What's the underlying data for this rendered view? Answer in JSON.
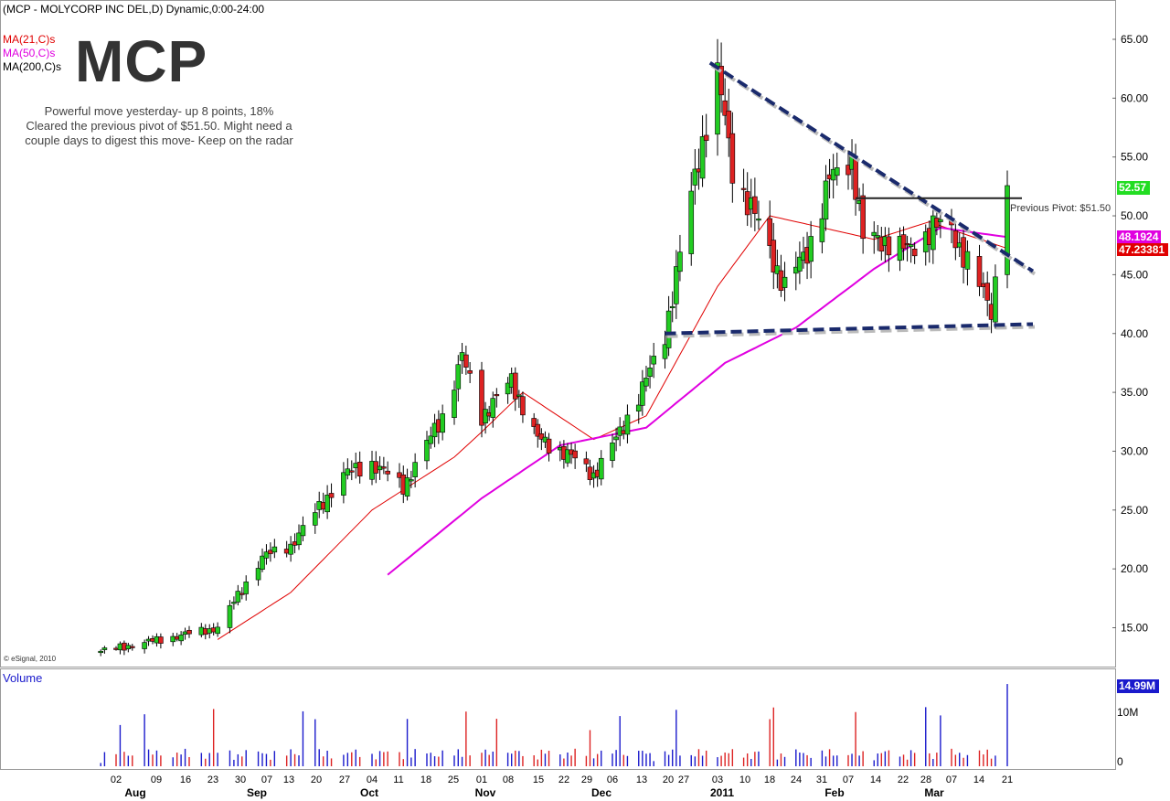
{
  "header": {
    "title": "(MCP - MOLYCORP INC DEL,D) Dynamic,0:00-24:00",
    "symbol": "MCP",
    "ma_labels": [
      {
        "text": "MA(21,C)s",
        "color": "#e00000"
      },
      {
        "text": "MA(50,C)s",
        "color": "#e000e0"
      },
      {
        "text": "MA(200,C)s",
        "color": "#000000"
      }
    ],
    "note": [
      "Powerful move yesterday- up 8 points, 18%",
      "Cleared the previous pivot of $51.50.  Might need a",
      "couple days to digest this move- Keep on the radar"
    ],
    "copyright": "© eSignal, 2010"
  },
  "price_axis": {
    "ticks": [
      "65.00",
      "60.00",
      "55.00",
      "50.00",
      "45.00",
      "40.00",
      "35.00",
      "30.00",
      "25.00",
      "20.00",
      "15.00"
    ],
    "last_price": "52.57",
    "ma50_value": "48.1924",
    "ma21_value": "47.23381",
    "last_color": "#00cc00",
    "ma50_color": "#e000e0",
    "ma21_color": "#e00000"
  },
  "annotations": {
    "pivot_label": "Previous Pivot: $51.50"
  },
  "volume_panel": {
    "title": "Volume",
    "last_volume": "14.99M",
    "ticks": [
      "10M",
      "0"
    ]
  },
  "x_axis": {
    "day_labels": [
      "02",
      "09",
      "16",
      "23",
      "30",
      "07",
      "13",
      "20",
      "27",
      "04",
      "11",
      "18",
      "25",
      "01",
      "08",
      "15",
      "22",
      "29",
      "06",
      "13",
      "20",
      "27",
      "03",
      "10",
      "18",
      "24",
      "31",
      "07",
      "14",
      "22",
      "28",
      "07",
      "14",
      "21"
    ],
    "month_labels": [
      "Aug",
      "Sep",
      "Oct",
      "Nov",
      "Dec",
      "2011",
      "Feb",
      "Mar"
    ]
  },
  "colors": {
    "up": "#22cc22",
    "down": "#dd2222",
    "trendline": "#1a2a6c",
    "volume_up": "#1a1acc",
    "volume_down": "#dd2222"
  },
  "chart_data": {
    "type": "candlestick",
    "title": "(MCP - MOLYCORP INC DEL,D) Dynamic,0:00-24:00",
    "y_range": [
      12,
      67
    ],
    "series": [
      {
        "name": "MA(21,C)s",
        "type": "line"
      },
      {
        "name": "MA(50,C)s",
        "type": "line"
      }
    ],
    "price_waypoints": [
      {
        "date": "Jul 29",
        "close": 13
      },
      {
        "date": "Aug 13",
        "close": 14
      },
      {
        "date": "Aug 27",
        "close": 15
      },
      {
        "date": "Sep 07",
        "close": 21
      },
      {
        "date": "Sep 14",
        "close": 22
      },
      {
        "date": "Sep 27",
        "close": 28
      },
      {
        "date": "Oct 04",
        "close": 29
      },
      {
        "date": "Oct 12",
        "close": 27
      },
      {
        "date": "Oct 22",
        "close": 33
      },
      {
        "date": "Oct 27",
        "close": 38
      },
      {
        "date": "Nov 01",
        "close": 33
      },
      {
        "date": "Nov 09",
        "close": 36
      },
      {
        "date": "Nov 16",
        "close": 31
      },
      {
        "date": "Nov 23",
        "close": 30
      },
      {
        "date": "Dec 01",
        "close": 28
      },
      {
        "date": "Dec 07",
        "close": 31
      },
      {
        "date": "Dec 15",
        "close": 36
      },
      {
        "date": "Dec 20",
        "close": 40
      },
      {
        "date": "Dec 23",
        "close": 45
      },
      {
        "date": "Dec 29",
        "close": 55
      },
      {
        "date": "Jan 03",
        "close": 62
      },
      {
        "date": "Jan 07",
        "close": 54
      },
      {
        "date": "Jan 13",
        "close": 50
      },
      {
        "date": "Jan 21",
        "close": 44
      },
      {
        "date": "Jan 27",
        "close": 47
      },
      {
        "date": "Feb 02",
        "close": 53
      },
      {
        "date": "Feb 08",
        "close": 55
      },
      {
        "date": "Feb 11",
        "close": 48
      },
      {
        "date": "Feb 17",
        "close": 48
      },
      {
        "date": "Feb 23",
        "close": 47
      },
      {
        "date": "Mar 02",
        "close": 49
      },
      {
        "date": "Mar 07",
        "close": 49
      },
      {
        "date": "Mar 11",
        "close": 46
      },
      {
        "date": "Mar 17",
        "close": 42
      },
      {
        "date": "Mar 21",
        "close": 52.57
      }
    ],
    "ma21_waypoints": [
      {
        "date": "Aug 27",
        "value": 14
      },
      {
        "date": "Sep 14",
        "value": 18
      },
      {
        "date": "Oct 04",
        "value": 25
      },
      {
        "date": "Oct 25",
        "value": 29.5
      },
      {
        "date": "Nov 12",
        "value": 35
      },
      {
        "date": "Dec 01",
        "value": 31
      },
      {
        "date": "Dec 15",
        "value": 33
      },
      {
        "date": "Jan 03",
        "value": 44
      },
      {
        "date": "Jan 17",
        "value": 50
      },
      {
        "date": "Jan 31",
        "value": 49
      },
      {
        "date": "Feb 14",
        "value": 48
      },
      {
        "date": "Mar 01",
        "value": 49.5
      },
      {
        "date": "Mar 21",
        "value": 47.23
      }
    ],
    "ma50_waypoints": [
      {
        "date": "Oct 08",
        "value": 19.5
      },
      {
        "date": "Nov 01",
        "value": 26
      },
      {
        "date": "Nov 22",
        "value": 30.5
      },
      {
        "date": "Dec 15",
        "value": 32
      },
      {
        "date": "Jan 05",
        "value": 37.5
      },
      {
        "date": "Jan 24",
        "value": 40.5
      },
      {
        "date": "Feb 14",
        "value": 45.5
      },
      {
        "date": "Mar 04",
        "value": 49
      },
      {
        "date": "Mar 21",
        "value": 48.19
      }
    ],
    "trendlines": [
      {
        "name": "resistance",
        "from": {
          "date": "Jan 01",
          "value": 63
        },
        "to": {
          "date": "Mar 28",
          "value": 45.3
        }
      },
      {
        "name": "support",
        "from": {
          "date": "Dec 20",
          "value": 40
        },
        "to": {
          "date": "Mar 28",
          "value": 40.8
        }
      },
      {
        "name": "pivot",
        "from": {
          "date": "Feb 09",
          "value": 51.5
        },
        "to": {
          "date": "Mar 25",
          "value": 51.5
        }
      }
    ],
    "volume": {
      "unit": "M",
      "last": 14.99,
      "range": [
        0,
        16
      ]
    }
  }
}
